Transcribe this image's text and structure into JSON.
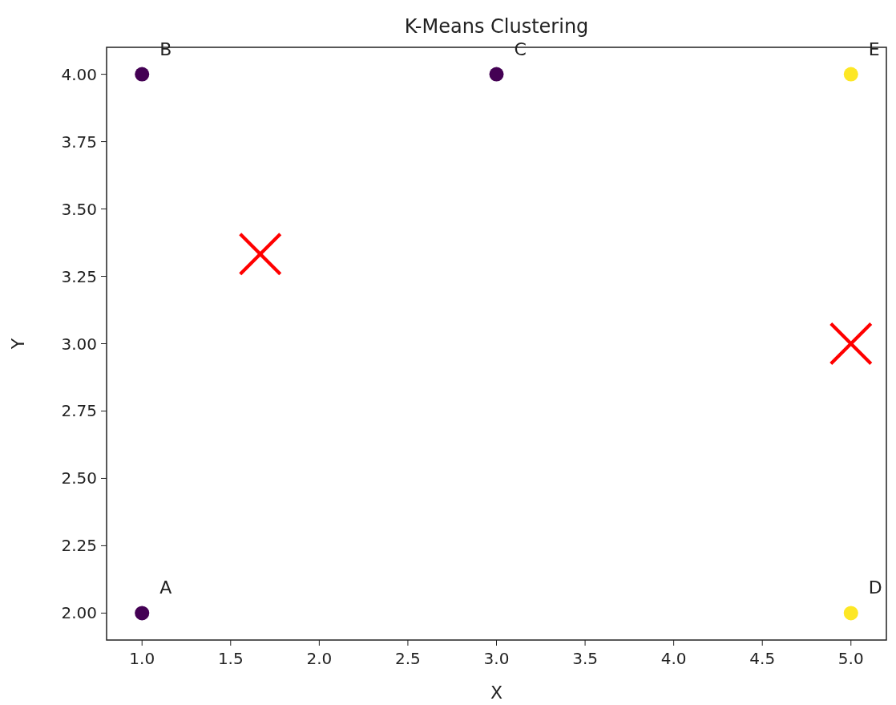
{
  "chart_data": {
    "type": "scatter",
    "title": "K-Means Clustering",
    "xlabel": "X",
    "ylabel": "Y",
    "xlim": [
      0.8,
      5.2
    ],
    "ylim": [
      1.9,
      4.1
    ],
    "xticks": [
      {
        "value": 1,
        "label": "1.0"
      },
      {
        "value": 1.5,
        "label": "1.5"
      },
      {
        "value": 2,
        "label": "2.0"
      },
      {
        "value": 2.5,
        "label": "2.5"
      },
      {
        "value": 3,
        "label": "3.0"
      },
      {
        "value": 3.5,
        "label": "3.5"
      },
      {
        "value": 4,
        "label": "4.0"
      },
      {
        "value": 4.5,
        "label": "4.5"
      },
      {
        "value": 5,
        "label": "5.0"
      }
    ],
    "yticks": [
      {
        "value": 2,
        "label": "2.00"
      },
      {
        "value": 2.25,
        "label": "2.25"
      },
      {
        "value": 2.5,
        "label": "2.50"
      },
      {
        "value": 2.75,
        "label": "2.75"
      },
      {
        "value": 3,
        "label": "3.00"
      },
      {
        "value": 3.25,
        "label": "3.25"
      },
      {
        "value": 3.5,
        "label": "3.50"
      },
      {
        "value": 3.75,
        "label": "3.75"
      },
      {
        "value": 4,
        "label": "4.00"
      }
    ],
    "grid": false,
    "series": [
      {
        "color": "#440154",
        "marker": "circle",
        "x": [
          1,
          1,
          3
        ],
        "values": [
          2,
          4,
          4
        ]
      },
      {
        "color": "#fde725",
        "marker": "circle",
        "x": [
          5,
          5
        ],
        "values": [
          2,
          4
        ]
      },
      {
        "color": "#ff0000",
        "marker": "cross",
        "x": [
          1.667,
          5
        ],
        "values": [
          3.333,
          3
        ]
      }
    ],
    "annotations": [
      {
        "text": "A",
        "x": 1,
        "y": 2
      },
      {
        "text": "B",
        "x": 1,
        "y": 4
      },
      {
        "text": "C",
        "x": 3,
        "y": 4
      },
      {
        "text": "D",
        "x": 5,
        "y": 2
      },
      {
        "text": "E",
        "x": 5,
        "y": 4
      }
    ]
  }
}
